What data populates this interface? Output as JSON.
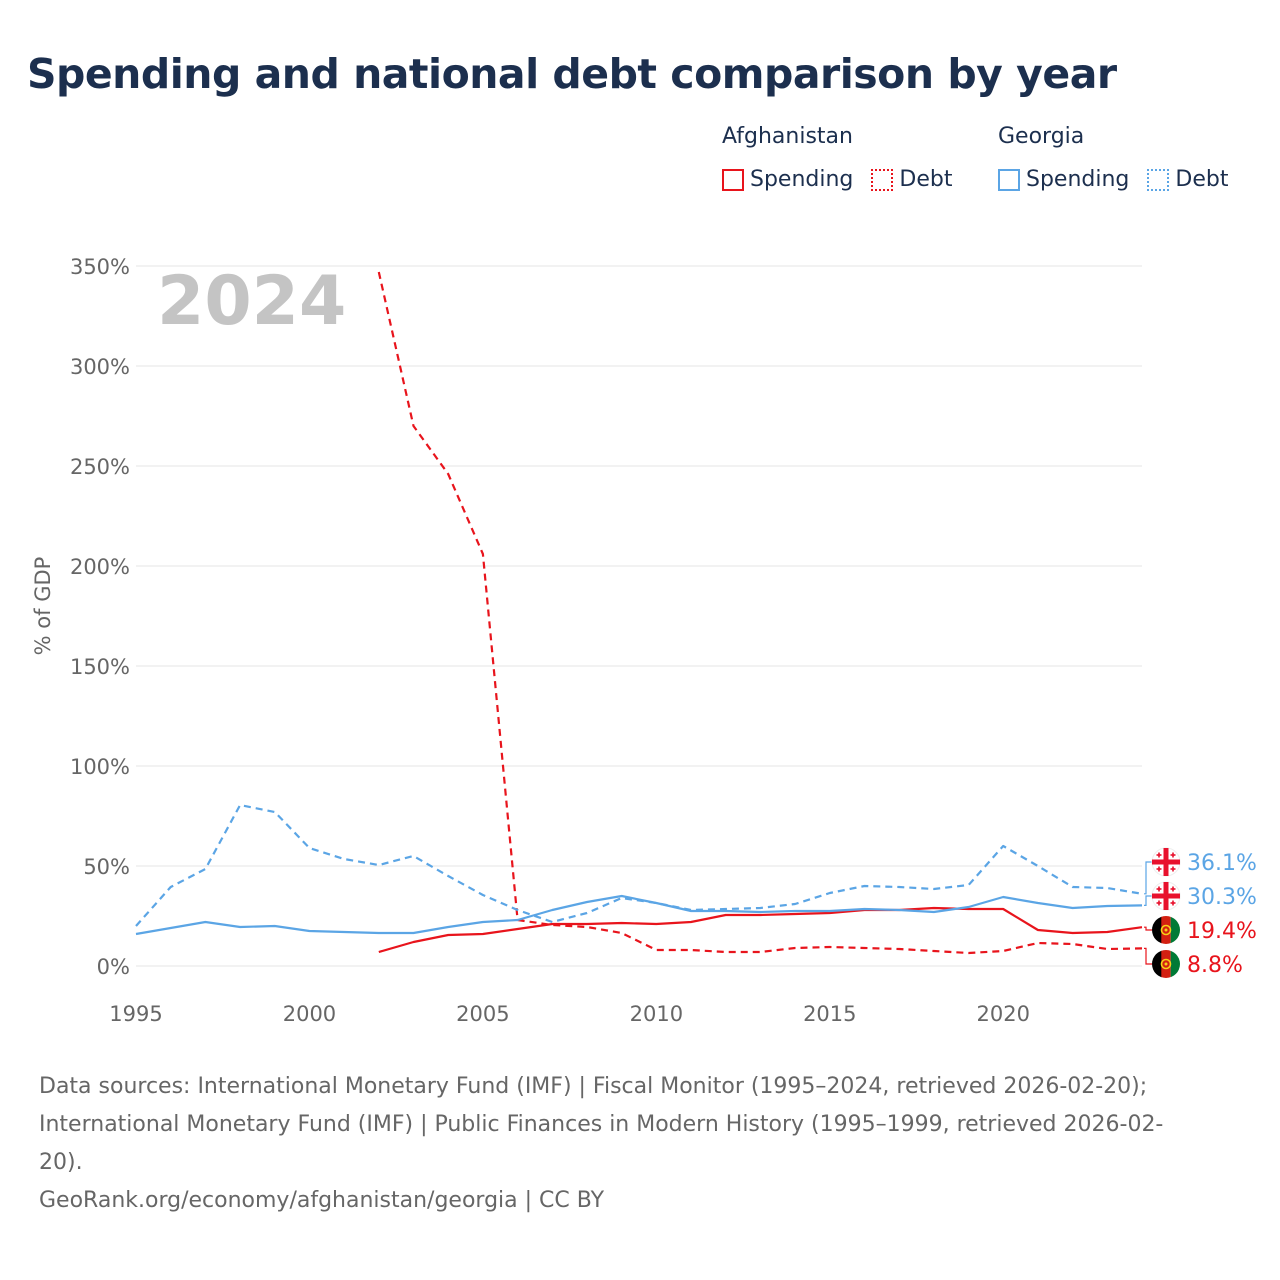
{
  "title": "Spending and national debt comparison by year",
  "legend": {
    "groups": [
      {
        "country": "Afghanistan",
        "items": [
          {
            "label": "Spending",
            "style": "solid"
          },
          {
            "label": "Debt",
            "style": "dotted"
          }
        ],
        "color": "#e8141c"
      },
      {
        "country": "Georgia",
        "items": [
          {
            "label": "Spending",
            "style": "solid"
          },
          {
            "label": "Debt",
            "style": "dotted"
          }
        ],
        "color": "#5ba5e5"
      }
    ]
  },
  "year_watermark": "2024",
  "chart_data": {
    "type": "line",
    "ylabel": "% of GDP",
    "xlabel": "",
    "xlim": [
      1995,
      2024
    ],
    "ylim": [
      0,
      350
    ],
    "x_ticks": [
      1995,
      2000,
      2005,
      2010,
      2015,
      2020
    ],
    "y_ticks": [
      0,
      50,
      100,
      150,
      200,
      250,
      300,
      350
    ],
    "y_tick_labels": [
      "0%",
      "50%",
      "100%",
      "150%",
      "200%",
      "250%",
      "300%",
      "350%"
    ],
    "series": [
      {
        "name": "Afghanistan Spending",
        "country": "Afghanistan",
        "color": "#e8141c",
        "dash": false,
        "x": [
          2002,
          2003,
          2004,
          2005,
          2006,
          2007,
          2008,
          2009,
          2010,
          2011,
          2012,
          2013,
          2014,
          2015,
          2016,
          2017,
          2018,
          2019,
          2020,
          2021,
          2022,
          2023,
          2024
        ],
        "y": [
          7,
          12,
          15.5,
          16,
          18.5,
          21,
          21,
          21.5,
          21,
          22,
          25.5,
          25.5,
          26,
          26.5,
          28,
          28,
          29,
          28.5,
          28.5,
          18,
          16.5,
          17,
          19.4
        ]
      },
      {
        "name": "Afghanistan Debt",
        "country": "Afghanistan",
        "color": "#e8141c",
        "dash": true,
        "x": [
          2002,
          2003,
          2004,
          2005,
          2006,
          2007,
          2008,
          2009,
          2010,
          2011,
          2012,
          2013,
          2014,
          2015,
          2016,
          2017,
          2018,
          2019,
          2020,
          2021,
          2022,
          2023,
          2024
        ],
        "y": [
          347,
          270,
          246,
          206,
          23,
          20.5,
          19.5,
          16.5,
          8,
          8,
          7,
          7,
          9,
          9.5,
          9,
          8.5,
          7.5,
          6.5,
          7.5,
          11.5,
          11,
          8.5,
          8.8
        ]
      },
      {
        "name": "Georgia Spending",
        "country": "Georgia",
        "color": "#5ba5e5",
        "dash": false,
        "x": [
          1995,
          1996,
          1997,
          1998,
          1999,
          2000,
          2001,
          2002,
          2003,
          2004,
          2005,
          2006,
          2007,
          2008,
          2009,
          2010,
          2011,
          2012,
          2013,
          2014,
          2015,
          2016,
          2017,
          2018,
          2019,
          2020,
          2021,
          2022,
          2023,
          2024
        ],
        "y": [
          16,
          19,
          22,
          19.5,
          20,
          17.5,
          17,
          16.5,
          16.5,
          19.5,
          22,
          23,
          28,
          32,
          35,
          31.5,
          27.5,
          27.5,
          27,
          27.5,
          27.5,
          28.5,
          28,
          27,
          29.5,
          34.5,
          31.5,
          29,
          30,
          30.3
        ]
      },
      {
        "name": "Georgia Debt",
        "country": "Georgia",
        "color": "#5ba5e5",
        "dash": true,
        "x": [
          1995,
          1996,
          1997,
          1998,
          1999,
          2000,
          2001,
          2002,
          2003,
          2004,
          2005,
          2006,
          2007,
          2008,
          2009,
          2010,
          2011,
          2012,
          2013,
          2014,
          2015,
          2016,
          2017,
          2018,
          2019,
          2020,
          2021,
          2022,
          2023,
          2024
        ],
        "y": [
          20,
          39.5,
          48.5,
          80.5,
          77,
          59,
          53.5,
          50.5,
          55,
          45,
          35.5,
          28,
          22,
          26.5,
          34,
          31.5,
          28,
          28.5,
          29,
          31,
          36.5,
          40,
          39.5,
          38.5,
          40.5,
          60,
          50,
          39.5,
          39,
          36.1
        ]
      }
    ],
    "end_labels": [
      {
        "series": "Georgia Debt",
        "label": "36.1%",
        "color": "#5ba5e5",
        "flag": "georgia"
      },
      {
        "series": "Georgia Spending",
        "label": "30.3%",
        "color": "#5ba5e5",
        "flag": "georgia"
      },
      {
        "series": "Afghanistan Spending",
        "label": "19.4%",
        "color": "#e8141c",
        "flag": "afghanistan"
      },
      {
        "series": "Afghanistan Debt",
        "label": "8.8%",
        "color": "#e8141c",
        "flag": "afghanistan"
      }
    ]
  },
  "footer": {
    "sources_line1": "Data sources: International Monetary Fund (IMF) | Fiscal Monitor (1995–2024, retrieved 2026-02-20);",
    "sources_line2": "International Monetary Fund (IMF) | Public Finances in Modern History (1995–1999, retrieved 2026-02-",
    "sources_line3": "20).",
    "credit": "GeoRank.org/economy/afghanistan/georgia | CC BY"
  }
}
